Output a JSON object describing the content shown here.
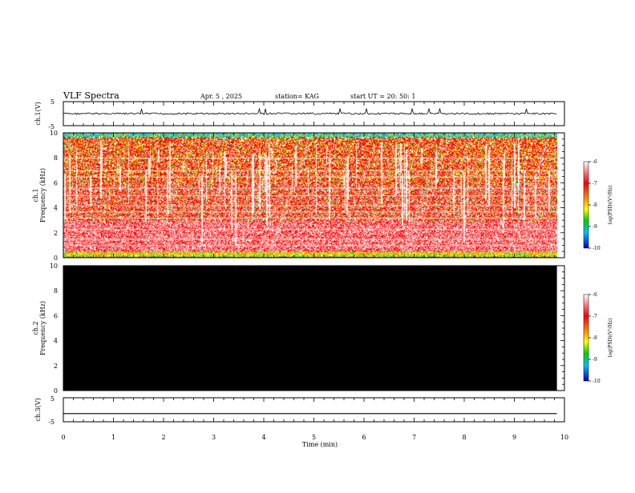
{
  "header": {
    "title": "VLF Spectra",
    "date": "Apr. 5  , 2025",
    "station": "station= KAG",
    "start": "start  UT  =   20: 50: 1"
  },
  "chart_data": [
    {
      "type": "line",
      "panel": "ch1-waveform",
      "ylabel": "ch.1(V)",
      "ylim": [
        -5,
        5
      ],
      "yticks": [
        "5",
        "-5"
      ],
      "xlim": [
        0,
        10
      ],
      "series": [
        {
          "x": [
            0,
            9.85
          ],
          "values": [
            0,
            0
          ]
        }
      ]
    },
    {
      "type": "heatmap",
      "panel": "ch1-spectrogram",
      "ylabel_line1": "ch.1",
      "ylabel_line2": "Frequency (kHz)",
      "ylim": [
        0,
        10
      ],
      "yticks": [
        "0",
        "2",
        "4",
        "6",
        "8",
        "10"
      ],
      "xlim": [
        0,
        10
      ],
      "data_xmax": 9.85,
      "colorbar": {
        "label": "log(PSD)(V²/Hz)",
        "range": [
          -10,
          -6
        ],
        "ticks": [
          "-6",
          "-7",
          "-8",
          "-9",
          "-10"
        ]
      }
    },
    {
      "type": "heatmap",
      "panel": "ch2-spectrogram",
      "ylabel_line1": "ch.2",
      "ylabel_line2": "Frequency (kHz)",
      "ylim": [
        0,
        10
      ],
      "yticks": [
        "0",
        "2",
        "4",
        "6",
        "8",
        "10"
      ],
      "xlim": [
        0,
        10
      ],
      "data_xmax": 9.85,
      "fill": "#000000",
      "colorbar": {
        "label": "log(PSD)(V²/Hz)",
        "range": [
          -10,
          -6
        ],
        "ticks": [
          "-6",
          "-7",
          "-8",
          "-9",
          "-10"
        ]
      }
    },
    {
      "type": "line",
      "panel": "ch3-waveform",
      "ylabel": "ch.3(V)",
      "ylim": [
        -5,
        5
      ],
      "yticks": [
        "5",
        "-5"
      ],
      "xlim": [
        0,
        10
      ],
      "series": [
        {
          "x": [
            0,
            9.85
          ],
          "values": [
            -1.6,
            -1.6
          ]
        }
      ]
    }
  ],
  "xaxis": {
    "label": "Time  (min)",
    "ticks": [
      "0",
      "1",
      "2",
      "3",
      "4",
      "5",
      "6",
      "7",
      "8",
      "9",
      "10"
    ]
  }
}
